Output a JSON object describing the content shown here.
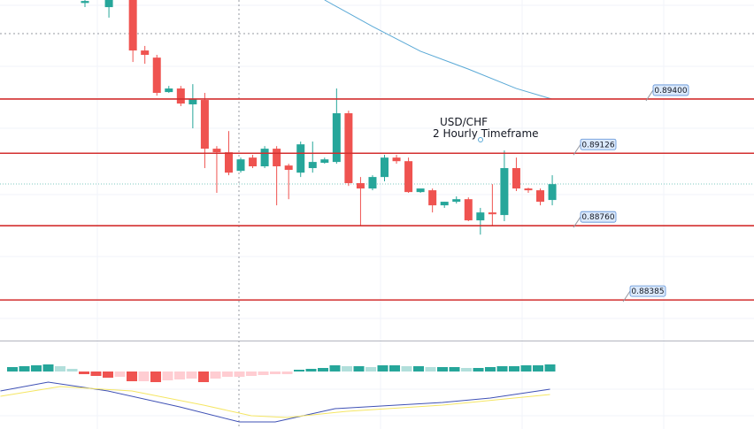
{
  "chart_data": {
    "type": "candlestick",
    "annotation": [
      "USD/CHF",
      "2 Hourly Timeframe"
    ],
    "ylim": [
      0.8818,
      0.899
    ],
    "up_color": "#26a69a",
    "down_color": "#ef5350",
    "level_color": "#d32f2f",
    "candles": [
      [
        0.89885,
        0.899,
        0.89864,
        0.89895
      ],
      null,
      [
        0.89864,
        0.899,
        0.89811,
        0.899
      ],
      null,
      [
        0.899,
        0.899,
        0.89587,
        0.89645
      ],
      [
        0.89645,
        0.89668,
        0.89578,
        0.89623
      ],
      [
        0.89609,
        0.89623,
        0.89417,
        0.89431
      ],
      [
        0.89435,
        0.89466,
        0.89431,
        0.89453
      ],
      [
        0.89453,
        0.89466,
        0.89364,
        0.89377
      ],
      [
        0.89373,
        0.89475,
        0.89252,
        0.89399
      ],
      [
        0.89395,
        0.89431,
        0.89051,
        0.89149
      ],
      [
        0.89149,
        0.89162,
        0.88926,
        0.89131
      ],
      [
        0.89131,
        0.89238,
        0.89015,
        0.89028
      ],
      [
        0.89037,
        0.89104,
        0.89028,
        0.89095
      ],
      [
        0.89104,
        0.89118,
        0.89051,
        0.8906
      ],
      [
        0.8906,
        0.89162,
        0.89051,
        0.89149
      ],
      [
        0.89149,
        0.89162,
        0.88863,
        0.8906
      ],
      [
        0.89064,
        0.89073,
        0.88894,
        0.89042
      ],
      [
        0.89028,
        0.89185,
        0.89006,
        0.89171
      ],
      [
        0.89051,
        0.89185,
        0.89028,
        0.89082
      ],
      [
        0.89078,
        0.89104,
        0.89073,
        0.89095
      ],
      [
        0.89082,
        0.89453,
        0.89073,
        0.89328
      ],
      [
        0.89328,
        0.89341,
        0.88961,
        0.88975
      ],
      [
        0.88975,
        0.89006,
        0.8876,
        0.88948
      ],
      [
        0.88948,
        0.89015,
        0.88939,
        0.89006
      ],
      [
        0.89006,
        0.89118,
        0.88984,
        0.89104
      ],
      [
        0.89104,
        0.89118,
        0.89073,
        0.89086
      ],
      [
        0.89086,
        0.89104,
        0.88926,
        0.8893
      ],
      [
        0.8893,
        0.88939,
        0.88926,
        0.88948
      ],
      [
        0.88939,
        0.88948,
        0.88827,
        0.88863
      ],
      [
        0.88863,
        0.88881,
        0.8885,
        0.88881
      ],
      [
        0.88881,
        0.88908,
        0.88872,
        0.88894
      ],
      [
        0.88894,
        0.88903,
        0.88783,
        0.88787
      ],
      [
        0.88787,
        0.8885,
        0.88715,
        0.88827
      ],
      [
        0.88827,
        0.8897,
        0.8876,
        0.88818
      ],
      [
        0.88814,
        0.8914,
        0.88783,
        0.89051
      ],
      [
        0.89051,
        0.89104,
        0.88935,
        0.88948
      ],
      [
        0.88948,
        0.88952,
        0.88926,
        0.88939
      ],
      [
        0.88939,
        0.88948,
        0.88863,
        0.88881
      ],
      [
        0.8889,
        0.89015,
        0.88863,
        0.8897
      ]
    ],
    "levels": [
      {
        "value": 0.894,
        "label": "0.89400"
      },
      {
        "value": 0.89126,
        "label": "0.89126"
      },
      {
        "value": 0.8876,
        "label": "0.88760"
      },
      {
        "value": 0.88385,
        "label": "0.88385"
      }
    ],
    "ma": {
      "color": "#5aa9d6",
      "x": [
        20,
        24,
        28,
        32,
        36,
        39
      ],
      "values": [
        0.899,
        0.89766,
        0.89641,
        0.89551,
        0.89453,
        0.89399
      ]
    },
    "histogram": {
      "rise_pos": "#26a69a",
      "fall_pos": "#b2dfdb",
      "fall_neg": "#ef5350",
      "rise_neg": "#ffcdd2",
      "values": [
        5,
        6,
        7,
        8,
        6,
        3,
        -3,
        -5,
        -7,
        -6,
        -11,
        -11,
        -12,
        -10,
        -9,
        -8,
        -12,
        -8,
        -6,
        -6,
        -5,
        -4,
        -3,
        -3,
        2,
        3,
        4,
        7,
        6,
        6,
        5,
        7,
        7,
        6,
        6,
        5,
        5,
        5,
        4,
        4,
        5,
        6,
        6,
        7,
        7,
        8
      ]
    },
    "macd": {
      "color": "#3f51b5",
      "x": [
        -1,
        3,
        8,
        14,
        19,
        22,
        27,
        36,
        40,
        45
      ],
      "values": [
        -22,
        -12,
        -22,
        -40,
        -57,
        -57,
        -42,
        -35,
        -30,
        -20
      ]
    },
    "signal": {
      "color": "#f5e663",
      "x": [
        -1,
        4,
        10,
        16,
        20,
        23,
        28,
        36,
        45
      ],
      "values": [
        -28,
        -17,
        -22,
        -38,
        -50,
        -52,
        -45,
        -38,
        -26
      ]
    }
  }
}
